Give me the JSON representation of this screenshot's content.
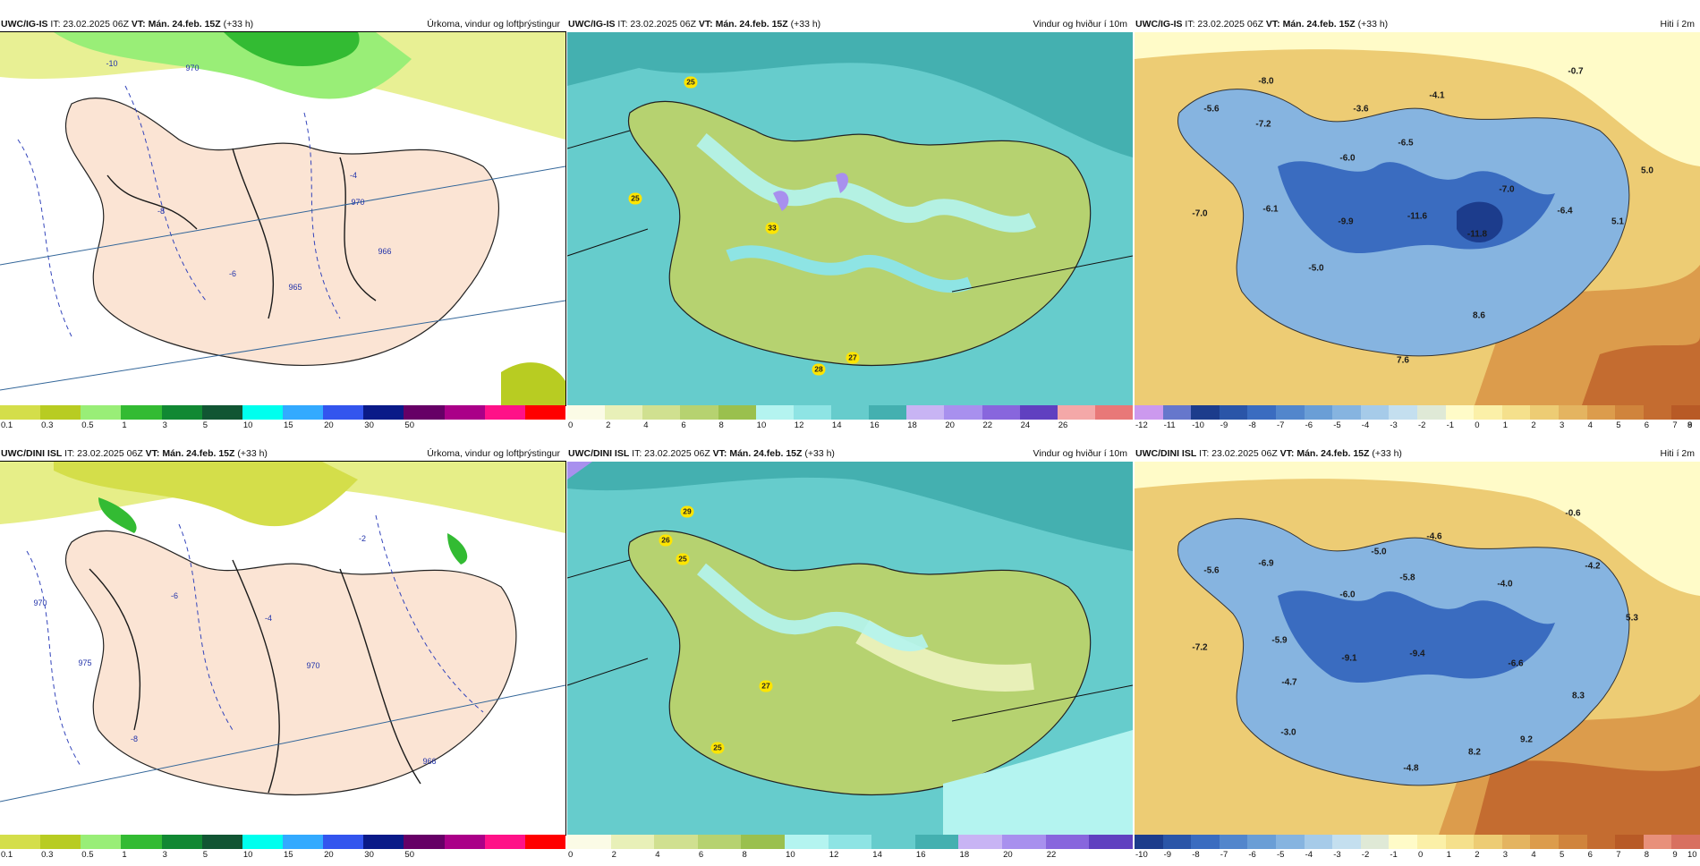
{
  "panels": [
    {
      "id": "igis-precip",
      "title_model": "UWC/IG-IS",
      "title_it": " IT: 23.02.2025 06Z ",
      "title_vt_label": "VT:",
      "title_vt": " Mán. 24.feb. 15Z",
      "title_lead": " (+33 h)",
      "title_right": "Úrkoma, vindur og loftþrýstingur",
      "colorbar": {
        "colors": [
          "#d4de4a",
          "#b8cc22",
          "#99ee77",
          "#33bb33",
          "#118833",
          "#115533",
          "#00ffee",
          "#33aaff",
          "#3355ee",
          "#0a1a88",
          "#660066",
          "#aa0088",
          "#ff1188",
          "#ff0000"
        ],
        "ticks": [
          "0.1",
          "0.3",
          "0.5",
          "1",
          "3",
          "5",
          "10",
          "15",
          "20",
          "30",
          "50"
        ]
      },
      "isobars": [
        "970",
        "965",
        "966",
        "970",
        "-4",
        "-6",
        "-8",
        "-10"
      ]
    },
    {
      "id": "igis-wind",
      "title_model": "UWC/IG-IS",
      "title_it": " IT: 23.02.2025 06Z ",
      "title_vt_label": "VT:",
      "title_vt": " Mán. 24.feb. 15Z",
      "title_lead": " (+33 h)",
      "title_right": "Vindur og hviður í 10m",
      "colorbar": {
        "colors": [
          "#fbfbe6",
          "#e8f0b8",
          "#d0e090",
          "#b6d270",
          "#9ac04e",
          "#b4f4f0",
          "#8ee4e4",
          "#66cccc",
          "#44b0b0",
          "#c8b4f4",
          "#a890ee",
          "#8866dd",
          "#6040c0",
          "#f4a8a8",
          "#e87878"
        ],
        "ticks": [
          "0",
          "2",
          "4",
          "6",
          "8",
          "10",
          "12",
          "14",
          "16",
          "18",
          "20",
          "22",
          "24",
          "26"
        ]
      },
      "gusts": [
        "25",
        "25",
        "33",
        "28",
        "27"
      ]
    },
    {
      "id": "igis-temp",
      "title_model": "UWC/IG-IS",
      "title_it": " IT: 23.02.2025 06Z ",
      "title_vt_label": "VT:",
      "title_vt": " Mán. 24.feb. 15Z",
      "title_lead": " (+33 h)",
      "title_right": "Hiti í 2m",
      "colorbar": {
        "colors": [
          "#cc99ee",
          "#6677cc",
          "#1c3c8c",
          "#2a55a8",
          "#3a6cc0",
          "#5286cc",
          "#6a9ed6",
          "#86b4e0",
          "#a6cbe9",
          "#c4dfef",
          "#dfe9d6",
          "#fffbc8",
          "#fbf0a8",
          "#f5e08c",
          "#edcc74",
          "#e4b460",
          "#dc9c4c",
          "#d0843c",
          "#c46c30",
          "#b85a26"
        ],
        "ticks": [
          "-12",
          "-11",
          "-10",
          "-9",
          "-8",
          "-7",
          "-6",
          "-5",
          "-4",
          "-3",
          "-2",
          "-1",
          "0",
          "1",
          "2",
          "3",
          "4",
          "5",
          "6",
          "7",
          "8",
          "9"
        ]
      },
      "labels": [
        "-8.0",
        "-5.6",
        "-7.2",
        "-3.6",
        "-4.1",
        "-0.7",
        "-6.5",
        "-6.0",
        "-7.0",
        "5.0",
        "-7.0",
        "-6.1",
        "-9.9",
        "-11.6",
        "-11.8",
        "-6.4",
        "5.1",
        "-5.0",
        "8.6",
        "7.6"
      ]
    },
    {
      "id": "dini-precip",
      "title_model": "UWC/DINI ISL",
      "title_it": " IT: 23.02.2025 06Z ",
      "title_vt_label": "VT:",
      "title_vt": " Mán. 24.feb. 15Z",
      "title_lead": " (+33 h)",
      "title_right": "Úrkoma, vindur og loftþrýstingur",
      "colorbar": {
        "colors": [
          "#d4de4a",
          "#b8cc22",
          "#99ee77",
          "#33bb33",
          "#118833",
          "#115533",
          "#00ffee",
          "#33aaff",
          "#3355ee",
          "#0a1a88",
          "#660066",
          "#aa0088",
          "#ff1188",
          "#ff0000"
        ],
        "ticks": [
          "0.1",
          "0.3",
          "0.5",
          "1",
          "3",
          "5",
          "10",
          "15",
          "20",
          "30",
          "50"
        ]
      },
      "isobars": [
        "975",
        "970",
        "966",
        "970",
        "-2",
        "-4",
        "-6",
        "-8"
      ]
    },
    {
      "id": "dini-wind",
      "title_model": "UWC/DINI ISL",
      "title_it": " IT: 23.02.2025 06Z ",
      "title_vt_label": "VT:",
      "title_vt": " Mán. 24.feb. 15Z",
      "title_lead": " (+33 h)",
      "title_right": "Vindur og hviður í 10m",
      "colorbar": {
        "colors": [
          "#fbfbe6",
          "#e8f0b8",
          "#d0e090",
          "#b6d270",
          "#9ac04e",
          "#b4f4f0",
          "#8ee4e4",
          "#66cccc",
          "#44b0b0",
          "#c8b4f4",
          "#a890ee",
          "#8866dd",
          "#6040c0"
        ],
        "ticks": [
          "0",
          "2",
          "4",
          "6",
          "8",
          "10",
          "12",
          "14",
          "16",
          "18",
          "20",
          "22"
        ]
      },
      "gusts": [
        "29",
        "26",
        "25",
        "27",
        "25"
      ]
    },
    {
      "id": "dini-temp",
      "title_model": "UWC/DINI ISL",
      "title_it": " IT: 23.02.2025 06Z ",
      "title_vt_label": "VT:",
      "title_vt": " Mán. 24.feb. 15Z",
      "title_lead": " (+33 h)",
      "title_right": "Hiti í 2m",
      "colorbar": {
        "colors": [
          "#1c3c8c",
          "#2a55a8",
          "#3a6cc0",
          "#5286cc",
          "#6a9ed6",
          "#86b4e0",
          "#a6cbe9",
          "#c4dfef",
          "#dfe9d6",
          "#fffbc8",
          "#fbf0a8",
          "#f5e08c",
          "#edcc74",
          "#e4b460",
          "#dc9c4c",
          "#d0843c",
          "#c46c30",
          "#b85a26",
          "#e8907a",
          "#d87060"
        ],
        "ticks": [
          "-10",
          "-9",
          "-8",
          "-7",
          "-6",
          "-5",
          "-4",
          "-3",
          "-2",
          "-1",
          "0",
          "1",
          "2",
          "3",
          "4",
          "5",
          "6",
          "7",
          "8",
          "9",
          "10"
        ]
      },
      "labels": [
        "-5.6",
        "-6.9",
        "-5.0",
        "-4.6",
        "-0.6",
        "-5.8",
        "-4.2",
        "-6.0",
        "-4.0",
        "-5.9",
        "-7.2",
        "5.3",
        "-9.1",
        "-9.4",
        "-6.6",
        "-4.7",
        "8.3",
        "-3.0",
        "9.2",
        "8.2",
        "-4.8"
      ]
    }
  ]
}
